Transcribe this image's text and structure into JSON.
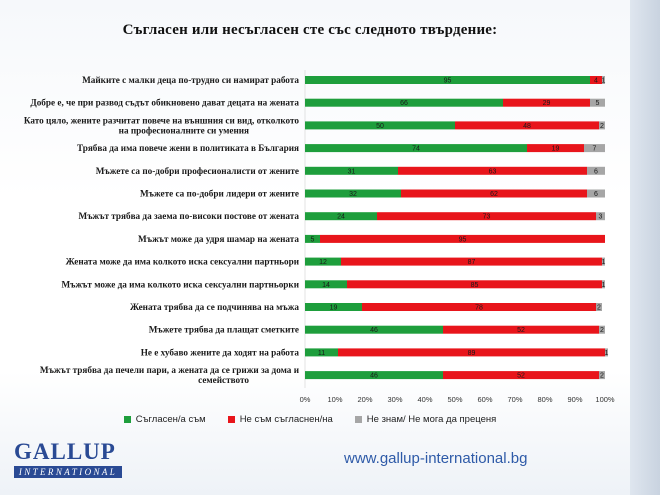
{
  "title": "Съгласен или несъгласен сте със следното твърдение:",
  "website": "www.gallup-international.bg",
  "logo": {
    "name": "GALLUP",
    "subtitle": "INTERNATIONAL"
  },
  "colors": {
    "agree": "#1e9e3c",
    "disagree": "#e8151b",
    "dont_know": "#a6a6a6",
    "brand": "#2a4a94"
  },
  "chart_data": {
    "type": "bar",
    "orientation": "horizontal",
    "stacked": true,
    "xlim": [
      0,
      100
    ],
    "x_ticks": [
      "0%",
      "10%",
      "20%",
      "30%",
      "40%",
      "50%",
      "60%",
      "70%",
      "80%",
      "90%",
      "100%"
    ],
    "legend_position": "bottom",
    "categories": [
      [
        "Майките с малки деца по-трудно си намират работа"
      ],
      [
        "Добре е, че при развод съдът обикновено дават децата на жената"
      ],
      [
        "Като цяло, жените разчитат повече на външния си вид, отколкото",
        "на професионалните си умения"
      ],
      [
        "Трябва да има повече жени в политиката в България"
      ],
      [
        "Мъжете са по-добри професионалисти от жените"
      ],
      [
        "Мъжете са по-добри лидери от жените"
      ],
      [
        "Мъжът трябва да заема по-високи постове от жената"
      ],
      [
        "Мъжът може да удря шамар на жената"
      ],
      [
        "Жената може да има колкото иска сексуални партньори"
      ],
      [
        "Мъжът може да има колкото иска сексуални партньорки"
      ],
      [
        "Жената трябва да се подчинява на мъжа"
      ],
      [
        "Мъжете трябва да плащат сметките"
      ],
      [
        "Не е хубаво жените да ходят на работа"
      ],
      [
        "Мъжът трябва да печели пари, а жената да се грижи за дома и",
        "семейството"
      ]
    ],
    "series": [
      {
        "name": "Съгласен/а съм",
        "values": [
          95,
          66,
          50,
          74,
          31,
          32,
          24,
          5,
          12,
          14,
          19,
          46,
          11,
          46
        ]
      },
      {
        "name": "Не съм съгласнен/на",
        "values": [
          4,
          29,
          48,
          19,
          63,
          62,
          73,
          95,
          87,
          85,
          78,
          52,
          89,
          52
        ]
      },
      {
        "name": "Не знам/ Не мога да преценя",
        "values": [
          1,
          5,
          2,
          7,
          6,
          6,
          3,
          0,
          1,
          1,
          2,
          2,
          1,
          2
        ]
      }
    ]
  }
}
